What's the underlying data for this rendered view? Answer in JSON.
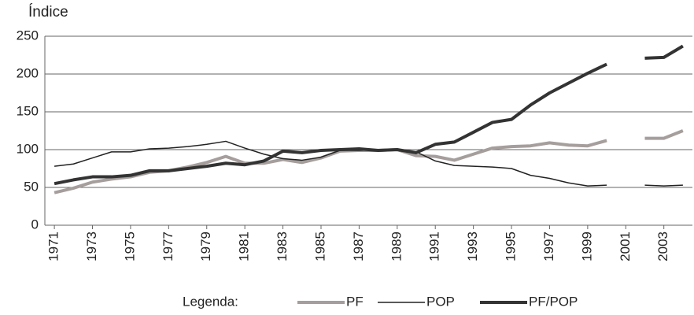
{
  "chart_data": {
    "type": "line",
    "title": "Índice",
    "x": [
      1971,
      1972,
      1973,
      1974,
      1975,
      1976,
      1977,
      1978,
      1979,
      1980,
      1981,
      1982,
      1983,
      1984,
      1985,
      1986,
      1987,
      1988,
      1989,
      1990,
      1991,
      1992,
      1993,
      1994,
      1995,
      1996,
      1997,
      1998,
      1999,
      2000,
      2001,
      2002,
      2003,
      2004
    ],
    "xlim": [
      1970.5,
      2004.5
    ],
    "xticks": [
      1971,
      1973,
      1975,
      1977,
      1979,
      1981,
      1983,
      1985,
      1987,
      1989,
      1991,
      1993,
      1995,
      1997,
      1999,
      2001,
      2003
    ],
    "ylim": [
      0,
      250
    ],
    "yticks": [
      0,
      50,
      100,
      150,
      200,
      250
    ],
    "grid": true,
    "legend_title": "Legenda:",
    "series": [
      {
        "name": "PF",
        "color": "#a59e9c",
        "width": 4,
        "values": [
          43,
          49,
          57,
          61,
          64,
          70,
          72,
          77,
          83,
          91,
          82,
          82,
          87,
          83,
          89,
          98,
          99,
          99,
          100,
          92,
          91,
          86,
          94,
          102,
          104,
          105,
          109,
          106,
          105,
          112,
          null,
          115,
          115,
          125
        ]
      },
      {
        "name": "POP",
        "color": "#222222",
        "width": 1.5,
        "values": [
          78,
          81,
          89,
          97,
          97,
          101,
          102,
          104,
          107,
          111,
          102,
          94,
          88,
          86,
          90,
          99,
          99,
          100,
          100,
          97,
          85,
          79,
          78,
          77,
          75,
          66,
          62,
          56,
          52,
          53,
          null,
          53,
          52,
          53
        ]
      },
      {
        "name": "PF/POP",
        "color": "#333333",
        "width": 4,
        "values": [
          55,
          60,
          64,
          64,
          66,
          72,
          72,
          75,
          78,
          82,
          80,
          85,
          98,
          96,
          99,
          100,
          101,
          99,
          100,
          96,
          107,
          110,
          123,
          136,
          140,
          159,
          175,
          188,
          201,
          213,
          null,
          221,
          222,
          237
        ]
      }
    ]
  }
}
